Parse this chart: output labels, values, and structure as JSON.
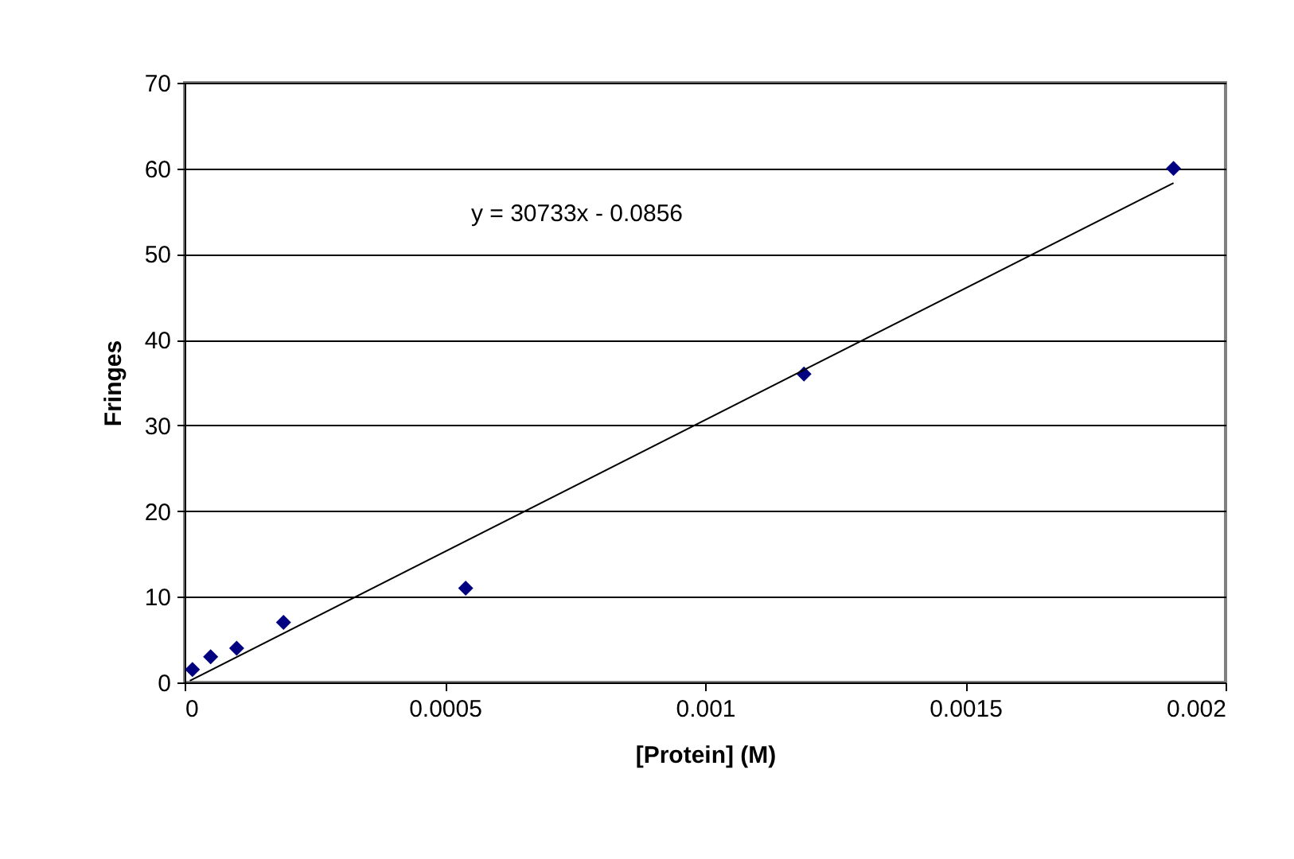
{
  "chart_data": {
    "type": "scatter",
    "xlabel": "[Protein] (M)",
    "ylabel": "Fringes",
    "x": [
      1.5e-05,
      5e-05,
      0.0001,
      0.00019,
      0.00054,
      0.00119,
      0.0019
    ],
    "series": [
      {
        "color": "#000080",
        "values": [
          1.5,
          3,
          4,
          7,
          11,
          36,
          60
        ],
        "marker": "diamond"
      },
      {
        "type": "line",
        "color": "#000000",
        "x": [
          1e-05,
          0.0019
        ],
        "values": [
          0.2,
          58.3
        ],
        "line_style": "solid"
      }
    ],
    "annotations": [
      "y = 30733x - 0.0856"
    ],
    "xlim": [
      0,
      0.002
    ],
    "xticks": [
      0,
      0.0005,
      0.001,
      0.0015,
      0.002
    ],
    "ylim": [
      0,
      70
    ],
    "yticks": [
      0,
      10,
      20,
      30,
      40,
      50,
      60,
      70
    ],
    "grid": "y"
  }
}
